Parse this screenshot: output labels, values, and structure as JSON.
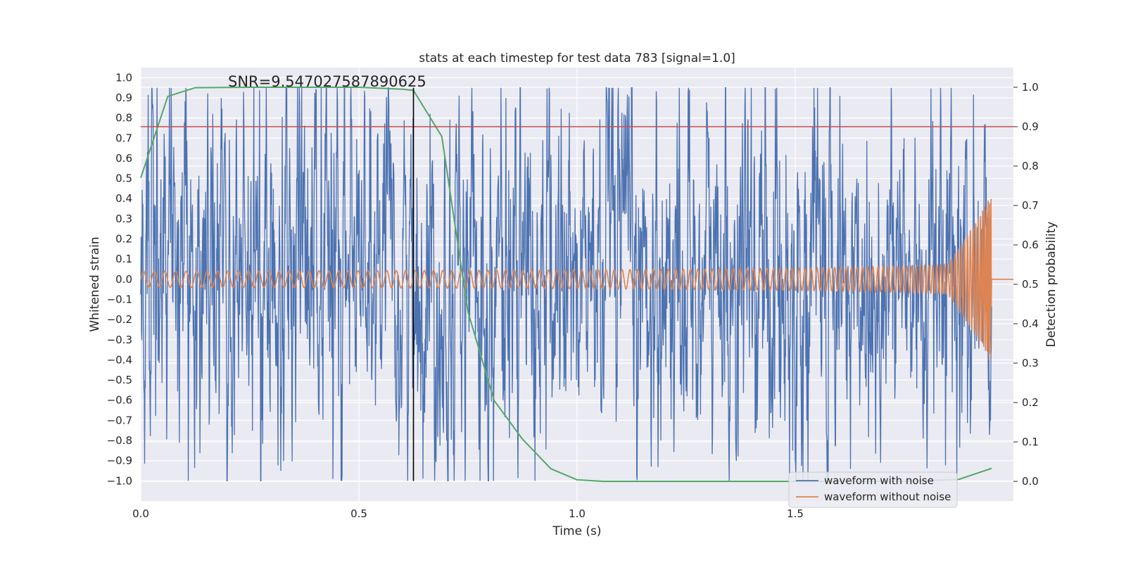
{
  "chart_data": {
    "type": "line",
    "title": "stats at each timestep for test data 783 [signal=1.0]",
    "xlabel": "Time (s)",
    "ylabel": "Whitened strain",
    "y2label": "Detection probability",
    "xlim": [
      0.0,
      2.0
    ],
    "ylim": [
      -1.1,
      1.05
    ],
    "y2lim": [
      -0.05,
      1.05
    ],
    "x_ticks": [
      0.0,
      0.5,
      1.0,
      1.5
    ],
    "x_tick_labels": [
      "0.0",
      "0.5",
      "1.0",
      "1.5"
    ],
    "y_ticks": [
      1.0,
      0.9,
      0.8,
      0.7,
      0.6,
      0.5,
      0.4,
      0.3,
      0.2,
      0.1,
      0.0,
      -0.1,
      -0.2,
      -0.3,
      -0.4,
      -0.5,
      -0.6,
      -0.7,
      -0.8,
      -0.9,
      -1.0
    ],
    "y_tick_labels": [
      "1.0",
      "0.9",
      "0.8",
      "0.7",
      "0.6",
      "0.5",
      "0.4",
      "0.3",
      "0.2",
      "0.1",
      "0.0",
      "−0.1",
      "−0.2",
      "−0.3",
      "−0.4",
      "−0.5",
      "−0.6",
      "−0.7",
      "−0.8",
      "−0.9",
      "−1.0"
    ],
    "y2_ticks": [
      1.0,
      0.9,
      0.8,
      0.7,
      0.6,
      0.5,
      0.4,
      0.3,
      0.2,
      0.1,
      0.0
    ],
    "y2_tick_labels": [
      "1.0",
      "0.9",
      "0.8",
      "0.7",
      "0.6",
      "0.5",
      "0.4",
      "0.3",
      "0.2",
      "0.1",
      "0.0"
    ],
    "grid": true,
    "legend_position": "lower-right",
    "series": [
      {
        "name": "waveform with noise",
        "axis": "left",
        "color": "#4c72b0",
        "description_values": {
          "duration_s": 1.95,
          "amplitude_range": [
            -1.0,
            0.95
          ]
        }
      },
      {
        "name": "waveform without noise",
        "axis": "left",
        "color": "#dd8452",
        "description_values": {
          "start_amplitude": 0.04,
          "end_amplitude": 0.42,
          "merger_time_s": 1.95,
          "after_merger_value": 0.0
        }
      },
      {
        "axis": "right",
        "color": "#55a868",
        "x": [
          0.0,
          0.062,
          0.125,
          0.25,
          0.5,
          0.6,
          0.625,
          0.69,
          0.75,
          0.81,
          0.875,
          0.94,
          1.0,
          1.06,
          1.25,
          1.5,
          1.75,
          1.875,
          1.95
        ],
        "values": [
          0.77,
          0.977,
          0.999,
          1.0,
          1.0,
          0.995,
          0.992,
          0.875,
          0.43,
          0.205,
          0.107,
          0.032,
          0.004,
          0.0,
          0.0,
          0.0,
          0.0,
          0.005,
          0.033
        ]
      }
    ],
    "threshold": {
      "value": 0.9,
      "axis": "right",
      "color": "#c44e52"
    },
    "marker_line": {
      "x": 0.625,
      "color": "#000000",
      "ymin": -1.0,
      "ymax": 0.95
    },
    "annotation": {
      "text": "SNR=9.547027587890625"
    }
  }
}
